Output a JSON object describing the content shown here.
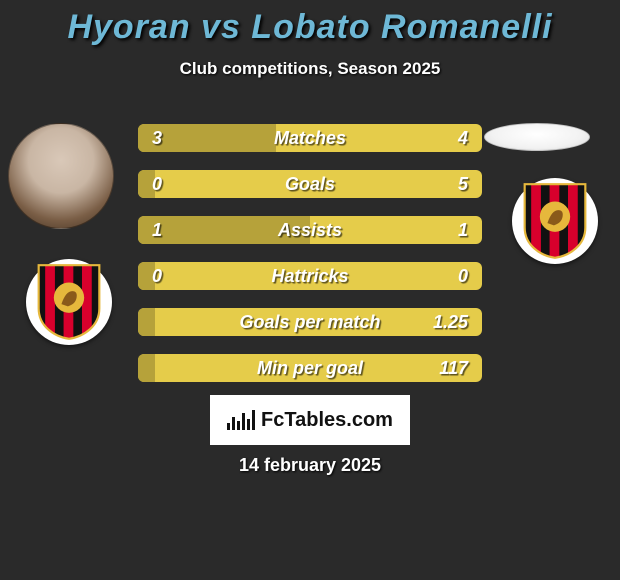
{
  "title_color": "#6eb8d6",
  "title": "Hyoran vs Lobato Romanelli",
  "subtitle": "Club competitions, Season 2025",
  "date": "14 february 2025",
  "fctables_label": "FcTables.com",
  "colors": {
    "player1_bar": "#b6a23a",
    "player2_bar": "#e5cc4a",
    "bg": "#2a2a2a"
  },
  "stats": [
    {
      "label": "Matches",
      "v1": "3",
      "v2": "4",
      "p1_pct": 40
    },
    {
      "label": "Goals",
      "v1": "0",
      "v2": "5",
      "p1_pct": 5
    },
    {
      "label": "Assists",
      "v1": "1",
      "v2": "1",
      "p1_pct": 50
    },
    {
      "label": "Hattricks",
      "v1": "0",
      "v2": "0",
      "p1_pct": 5
    },
    {
      "label": "Goals per match",
      "v1": "",
      "v2": "1.25",
      "p1_pct": 5
    },
    {
      "label": "Min per goal",
      "v1": "",
      "v2": "117",
      "p1_pct": 5
    }
  ]
}
